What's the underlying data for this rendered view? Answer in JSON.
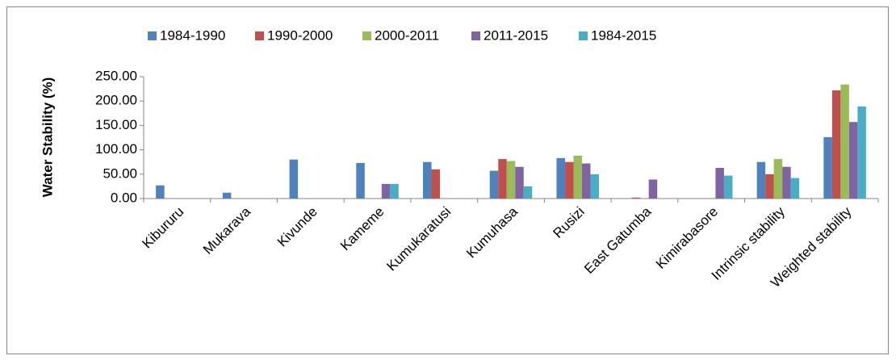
{
  "chart_data": {
    "type": "bar",
    "y_label": "Water  Stability (%)",
    "categories": [
      "Kibururu",
      "Mukarava",
      "Kivunde",
      "Kameme",
      "Kumukaratusi",
      "Kumuhasa",
      "Rusizi",
      "East Gatumba",
      "Kimirabasore",
      "Intrinsic stability",
      "Weighted stability"
    ],
    "series": [
      {
        "name": "1984-1990",
        "color": "#4f81bd",
        "values": [
          27,
          12,
          80,
          73,
          75,
          57,
          83,
          0,
          0,
          75,
          126
        ]
      },
      {
        "name": "1990-2000",
        "color": "#c0504d",
        "values": [
          0,
          0,
          0,
          0,
          60,
          81,
          75,
          2,
          0,
          50,
          222
        ]
      },
      {
        "name": "2000-2011",
        "color": "#9bbb59",
        "values": [
          0,
          0,
          0,
          0,
          0,
          77,
          88,
          0,
          0,
          81,
          234
        ]
      },
      {
        "name": "2011-2015",
        "color": "#8064a2",
        "values": [
          0,
          0,
          0,
          30,
          0,
          65,
          72,
          39,
          63,
          65,
          157
        ]
      },
      {
        "name": "1984-2015",
        "color": "#4bacc6",
        "values": [
          0,
          0,
          0,
          30,
          0,
          25,
          50,
          0,
          47,
          42,
          189
        ]
      }
    ],
    "ylim": [
      0,
      250
    ],
    "yticks": [
      {
        "value": 0,
        "label": "0.00"
      },
      {
        "value": 50,
        "label": "50.00"
      },
      {
        "value": 100,
        "label": "100.00"
      },
      {
        "value": 150,
        "label": "150.00"
      },
      {
        "value": 200,
        "label": "200.00"
      },
      {
        "value": 250,
        "label": "250.00"
      }
    ],
    "legend": "top"
  }
}
